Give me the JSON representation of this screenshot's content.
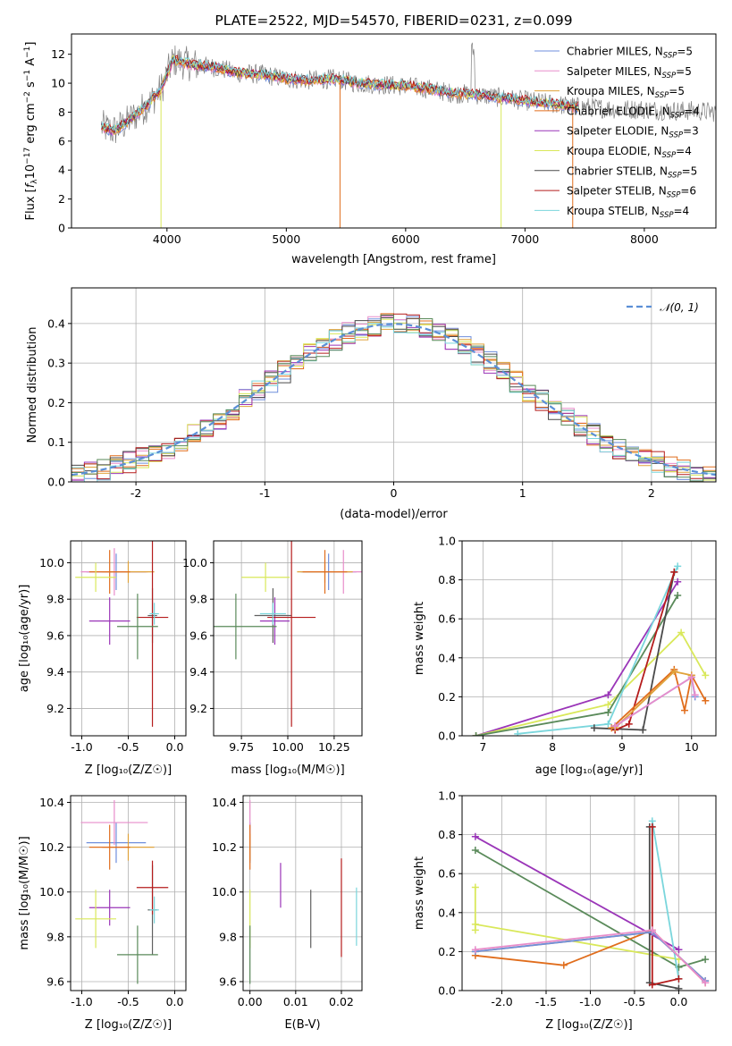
{
  "colors": {
    "c1": "#6f8fdc",
    "c2": "#e88dcb",
    "c3": "#e0a23a",
    "c4": "#e06d1c",
    "c5": "#9a35b8",
    "c6": "#d9e85a",
    "c7": "#606060",
    "c8": "#b51c1c",
    "c9": "#7ad6dc",
    "c10": "#5a8a5a",
    "c11": "#4a4a4a",
    "normal": "#5b8fd6"
  },
  "chart_data": [
    {
      "type": "line",
      "title": "PLATE=2522, MJD=54570, FIBERID=0231, z=0.099",
      "xlabel": "wavelength [Angstrom, rest frame]",
      "ylabel_tex": "Flux [f_λ 10^-17 erg cm^-2 s^-1 A^-1]",
      "xlim": [
        3200,
        8600
      ],
      "ylim": [
        0,
        13.4
      ],
      "xticks": [
        4000,
        5000,
        6000,
        7000,
        8000
      ],
      "yticks": [
        0,
        2,
        4,
        6,
        8,
        10,
        12
      ],
      "legend_position": "top-right",
      "series": [
        {
          "name": "Chabrier MILES, N_SSP=5",
          "color_key": "c1"
        },
        {
          "name": "Salpeter MILES, N_SSP=5",
          "color_key": "c2"
        },
        {
          "name": "Kroupa MILES, N_SSP=5",
          "color_key": "c3"
        },
        {
          "name": "Chabrier ELODIE, N_SSP=4",
          "color_key": "c4"
        },
        {
          "name": "Salpeter ELODIE, N_SSP=3",
          "color_key": "c5"
        },
        {
          "name": "Kroupa ELODIE, N_SSP=4",
          "color_key": "c6"
        },
        {
          "name": "Chabrier STELIB, N_SSP=5",
          "color_key": "c11"
        },
        {
          "name": "Salpeter STELIB, N_SSP=6",
          "color_key": "c8"
        },
        {
          "name": "Kroupa STELIB, N_SSP=4",
          "color_key": "c9"
        }
      ],
      "data_approx": {
        "x": [
          3450,
          3550,
          3650,
          3750,
          3850,
          3950,
          4050,
          4200,
          4400,
          4600,
          4800,
          5000,
          5200,
          5400,
          5600,
          5800,
          6000,
          6200,
          6400,
          6600,
          6800,
          7000,
          7200,
          7400,
          7600,
          7800,
          8000,
          8200,
          8400,
          8600
        ],
        "y": [
          7.0,
          6.7,
          7.2,
          7.9,
          8.6,
          9.6,
          11.6,
          11.3,
          11.1,
          10.7,
          10.6,
          10.3,
          10.2,
          10.3,
          10.0,
          9.9,
          9.8,
          9.6,
          9.3,
          9.2,
          9.0,
          8.8,
          8.6,
          8.4,
          8.3,
          8.2,
          8.2,
          8.1,
          8.1,
          8.0
        ]
      }
    },
    {
      "type": "bar",
      "subtype": "step-histogram",
      "xlabel": "(data-model)/error",
      "ylabel": "Normed distribution",
      "xlim": [
        -2.5,
        2.5
      ],
      "ylim": [
        0,
        0.49
      ],
      "xticks": [
        -2,
        -1,
        0,
        1,
        2
      ],
      "yticks": [
        0.0,
        0.1,
        0.2,
        0.3,
        0.4
      ],
      "legend": "𝒩(0, 1)",
      "legend_position": "top-right",
      "bin_width": 0.1,
      "histogram_spread": 0.028,
      "curve": {
        "name": "𝒩(0, 1)",
        "mean": 0,
        "sigma": 1
      }
    },
    {
      "type": "scatter",
      "subtype": "errorbar",
      "xlabel": "Z [log₁₀(Z/Z☉)]",
      "ylabel": "age  [log₁₀(age/yr)]",
      "xlim": [
        -1.12,
        0.12
      ],
      "ylim": [
        9.05,
        10.12
      ],
      "xticks": [
        -1.0,
        -0.5,
        0.0
      ],
      "yticks": [
        9.2,
        9.4,
        9.6,
        9.8,
        10.0
      ],
      "points": [
        {
          "x": -0.63,
          "y": 9.95,
          "xerr": 0.32,
          "yerr": 0.1,
          "color_key": "c1"
        },
        {
          "x": -0.65,
          "y": 9.95,
          "xerr": 0.36,
          "yerr": 0.13,
          "color_key": "c2"
        },
        {
          "x": -0.5,
          "y": 9.95,
          "xerr": 0.28,
          "yerr": 0.06,
          "color_key": "c3"
        },
        {
          "x": -0.7,
          "y": 9.95,
          "xerr": 0.22,
          "yerr": 0.12,
          "color_key": "c4"
        },
        {
          "x": -0.7,
          "y": 9.68,
          "xerr": 0.22,
          "yerr": 0.13,
          "color_key": "c5"
        },
        {
          "x": -0.85,
          "y": 9.92,
          "xerr": 0.22,
          "yerr": 0.08,
          "color_key": "c6"
        },
        {
          "x": -0.24,
          "y": 9.71,
          "xerr": 0.05,
          "yerr": 0.15,
          "color_key": "c7"
        },
        {
          "x": -0.24,
          "y": 9.7,
          "xerr": 0.17,
          "yerr": 0.6,
          "color_key": "c8"
        },
        {
          "x": -0.22,
          "y": 9.72,
          "xerr": 0.05,
          "yerr": 0.06,
          "color_key": "c9"
        },
        {
          "x": -0.4,
          "y": 9.65,
          "xerr": 0.22,
          "yerr": 0.18,
          "color_key": "c10"
        }
      ]
    },
    {
      "type": "scatter",
      "subtype": "errorbar",
      "xlabel": "mass [log₁₀(M/M☉)]",
      "ylabel": "",
      "xlim": [
        9.6,
        10.4
      ],
      "ylim": [
        9.05,
        10.12
      ],
      "xticks": [
        9.75,
        10.0,
        10.25
      ],
      "yticks": [
        9.2,
        9.4,
        9.6,
        9.8,
        10.0
      ],
      "points": [
        {
          "x": 10.22,
          "y": 9.95,
          "xerr": 0.15,
          "yerr": 0.1,
          "color_key": "c1"
        },
        {
          "x": 10.3,
          "y": 9.95,
          "xerr": 0.1,
          "yerr": 0.12,
          "color_key": "c2"
        },
        {
          "x": 10.2,
          "y": 9.95,
          "xerr": 0.15,
          "yerr": 0.06,
          "color_key": "c3"
        },
        {
          "x": 10.2,
          "y": 9.95,
          "xerr": 0.12,
          "yerr": 0.12,
          "color_key": "c4"
        },
        {
          "x": 9.93,
          "y": 9.68,
          "xerr": 0.08,
          "yerr": 0.13,
          "color_key": "c5"
        },
        {
          "x": 9.88,
          "y": 9.92,
          "xerr": 0.13,
          "yerr": 0.08,
          "color_key": "c6"
        },
        {
          "x": 9.92,
          "y": 9.71,
          "xerr": 0.1,
          "yerr": 0.15,
          "color_key": "c7"
        },
        {
          "x": 10.02,
          "y": 9.7,
          "xerr": 0.13,
          "yerr": 0.6,
          "color_key": "c8"
        },
        {
          "x": 9.92,
          "y": 9.72,
          "xerr": 0.07,
          "yerr": 0.06,
          "color_key": "c9"
        },
        {
          "x": 9.72,
          "y": 9.65,
          "xerr": 0.22,
          "yerr": 0.18,
          "color_key": "c10"
        }
      ]
    },
    {
      "type": "line",
      "xlabel": "age  [log₁₀(age/yr)]",
      "ylabel": "mass weight",
      "xlim": [
        6.7,
        10.35
      ],
      "ylim": [
        0,
        1.0
      ],
      "xticks": [
        7,
        8,
        9,
        10
      ],
      "yticks": [
        0.0,
        0.2,
        0.4,
        0.6,
        0.8,
        1.0
      ],
      "series": [
        {
          "color_key": "c5",
          "x": [
            6.9,
            8.8,
            9.8
          ],
          "y": [
            0.0,
            0.21,
            0.79
          ]
        },
        {
          "color_key": "c6",
          "x": [
            6.9,
            8.8,
            9.85,
            10.2
          ],
          "y": [
            0.0,
            0.16,
            0.53,
            0.31
          ]
        },
        {
          "color_key": "c10",
          "x": [
            6.9,
            8.8,
            9.8
          ],
          "y": [
            0.0,
            0.12,
            0.72
          ]
        },
        {
          "color_key": "c9",
          "x": [
            7.5,
            8.8,
            9.8
          ],
          "y": [
            0.01,
            0.06,
            0.87
          ]
        },
        {
          "color_key": "c11",
          "x": [
            8.6,
            9.3,
            9.75
          ],
          "y": [
            0.04,
            0.03,
            0.84
          ]
        },
        {
          "color_key": "c8",
          "x": [
            8.9,
            9.1,
            9.75
          ],
          "y": [
            0.03,
            0.06,
            0.84
          ]
        },
        {
          "color_key": "c4",
          "x": [
            8.85,
            9.75,
            9.9,
            10.0,
            10.2
          ],
          "y": [
            0.04,
            0.34,
            0.13,
            0.31,
            0.18
          ]
        },
        {
          "color_key": "c3",
          "x": [
            8.9,
            9.75,
            10.0
          ],
          "y": [
            0.04,
            0.33,
            0.31
          ]
        },
        {
          "color_key": "c1",
          "x": [
            8.9,
            10.0,
            10.05
          ],
          "y": [
            0.05,
            0.3,
            0.2
          ]
        },
        {
          "color_key": "c2",
          "x": [
            8.9,
            10.0,
            10.05
          ],
          "y": [
            0.05,
            0.3,
            0.21
          ]
        }
      ]
    },
    {
      "type": "scatter",
      "subtype": "errorbar",
      "xlabel": "Z [log₁₀(Z/Z☉)]",
      "ylabel": "mass [log₁₀(M/M☉)]",
      "xlim": [
        -1.12,
        0.12
      ],
      "ylim": [
        9.56,
        10.43
      ],
      "xticks": [
        -1.0,
        -0.5,
        0.0
      ],
      "yticks": [
        9.6,
        9.8,
        10.0,
        10.2,
        10.4
      ],
      "points": [
        {
          "x": -0.63,
          "y": 10.22,
          "xerr": 0.32,
          "yerr": 0.09,
          "color_key": "c1"
        },
        {
          "x": -0.65,
          "y": 10.31,
          "xerr": 0.36,
          "yerr": 0.1,
          "color_key": "c2"
        },
        {
          "x": -0.5,
          "y": 10.2,
          "xerr": 0.28,
          "yerr": 0.06,
          "color_key": "c3"
        },
        {
          "x": -0.7,
          "y": 10.2,
          "xerr": 0.22,
          "yerr": 0.1,
          "color_key": "c4"
        },
        {
          "x": -0.7,
          "y": 9.93,
          "xerr": 0.22,
          "yerr": 0.08,
          "color_key": "c5"
        },
        {
          "x": -0.85,
          "y": 9.88,
          "xerr": 0.22,
          "yerr": 0.13,
          "color_key": "c6"
        },
        {
          "x": -0.24,
          "y": 9.92,
          "xerr": 0.05,
          "yerr": 0.2,
          "color_key": "c7"
        },
        {
          "x": -0.24,
          "y": 10.02,
          "xerr": 0.17,
          "yerr": 0.12,
          "color_key": "c8"
        },
        {
          "x": -0.22,
          "y": 9.92,
          "xerr": 0.05,
          "yerr": 0.06,
          "color_key": "c9"
        },
        {
          "x": -0.4,
          "y": 9.72,
          "xerr": 0.22,
          "yerr": 0.13,
          "color_key": "c10"
        }
      ]
    },
    {
      "type": "scatter",
      "subtype": "errorbar",
      "xlabel": "E(B-V)",
      "ylabel": "",
      "xlim": [
        -0.0015,
        0.0245
      ],
      "ylim": [
        9.56,
        10.43
      ],
      "xticks": [
        0.0,
        0.01,
        0.02
      ],
      "yticks": [
        9.6,
        9.8,
        10.0,
        10.2,
        10.4
      ],
      "points": [
        {
          "x": 0.0,
          "y": 10.22,
          "yerr": 0.09,
          "color_key": "c1"
        },
        {
          "x": 0.0,
          "y": 10.31,
          "yerr": 0.1,
          "color_key": "c2"
        },
        {
          "x": 0.0,
          "y": 10.2,
          "yerr": 0.06,
          "color_key": "c3"
        },
        {
          "x": 0.0,
          "y": 10.2,
          "yerr": 0.1,
          "color_key": "c4"
        },
        {
          "x": 0.0067,
          "y": 10.03,
          "yerr": 0.1,
          "color_key": "c5"
        },
        {
          "x": 0.0,
          "y": 9.88,
          "yerr": 0.13,
          "color_key": "c6"
        },
        {
          "x": 0.0133,
          "y": 9.88,
          "yerr": 0.13,
          "color_key": "c7"
        },
        {
          "x": 0.02,
          "y": 9.93,
          "yerr": 0.22,
          "color_key": "c8"
        },
        {
          "x": 0.0233,
          "y": 9.89,
          "yerr": 0.13,
          "color_key": "c9"
        },
        {
          "x": 0.0,
          "y": 9.72,
          "yerr": 0.13,
          "color_key": "c10"
        }
      ]
    },
    {
      "type": "line",
      "xlabel": "Z [log₁₀(Z/Z☉)]",
      "ylabel": "mass weight",
      "xlim": [
        -2.45,
        0.42
      ],
      "ylim": [
        0,
        1.0
      ],
      "xticks": [
        -2.0,
        -1.5,
        -1.0,
        -0.5,
        0.0
      ],
      "yticks": [
        0.0,
        0.2,
        0.4,
        0.6,
        0.8,
        1.0
      ],
      "series": [
        {
          "color_key": "c5",
          "x": [
            -2.3,
            0.0
          ],
          "y": [
            0.79,
            0.21
          ]
        },
        {
          "color_key": "c10",
          "x": [
            -2.3,
            0.0,
            0.3
          ],
          "y": [
            0.72,
            0.12,
            0.16
          ]
        },
        {
          "color_key": "c6",
          "x": [
            -2.3,
            -2.3,
            -2.3,
            0.0
          ],
          "y": [
            0.53,
            0.31,
            0.34,
            0.16
          ]
        },
        {
          "color_key": "c9",
          "x": [
            -0.3,
            0.0
          ],
          "y": [
            0.87,
            0.06
          ]
        },
        {
          "color_key": "c11",
          "x": [
            -0.33,
            -0.33,
            0.0
          ],
          "y": [
            0.84,
            0.04,
            0.01
          ]
        },
        {
          "color_key": "c8",
          "x": [
            -0.3,
            -0.3,
            0.0
          ],
          "y": [
            0.84,
            0.03,
            0.06
          ]
        },
        {
          "color_key": "c4",
          "x": [
            -2.3,
            -1.3,
            -0.3,
            0.3
          ],
          "y": [
            0.18,
            0.13,
            0.31,
            0.04
          ]
        },
        {
          "color_key": "c3",
          "x": [
            -2.3,
            -0.3,
            0.3
          ],
          "y": [
            0.2,
            0.3,
            0.05
          ]
        },
        {
          "color_key": "c1",
          "x": [
            -2.3,
            -0.3,
            0.3
          ],
          "y": [
            0.2,
            0.3,
            0.05
          ]
        },
        {
          "color_key": "c2",
          "x": [
            -2.3,
            -0.3,
            0.3
          ],
          "y": [
            0.21,
            0.31,
            0.04
          ]
        }
      ]
    }
  ]
}
